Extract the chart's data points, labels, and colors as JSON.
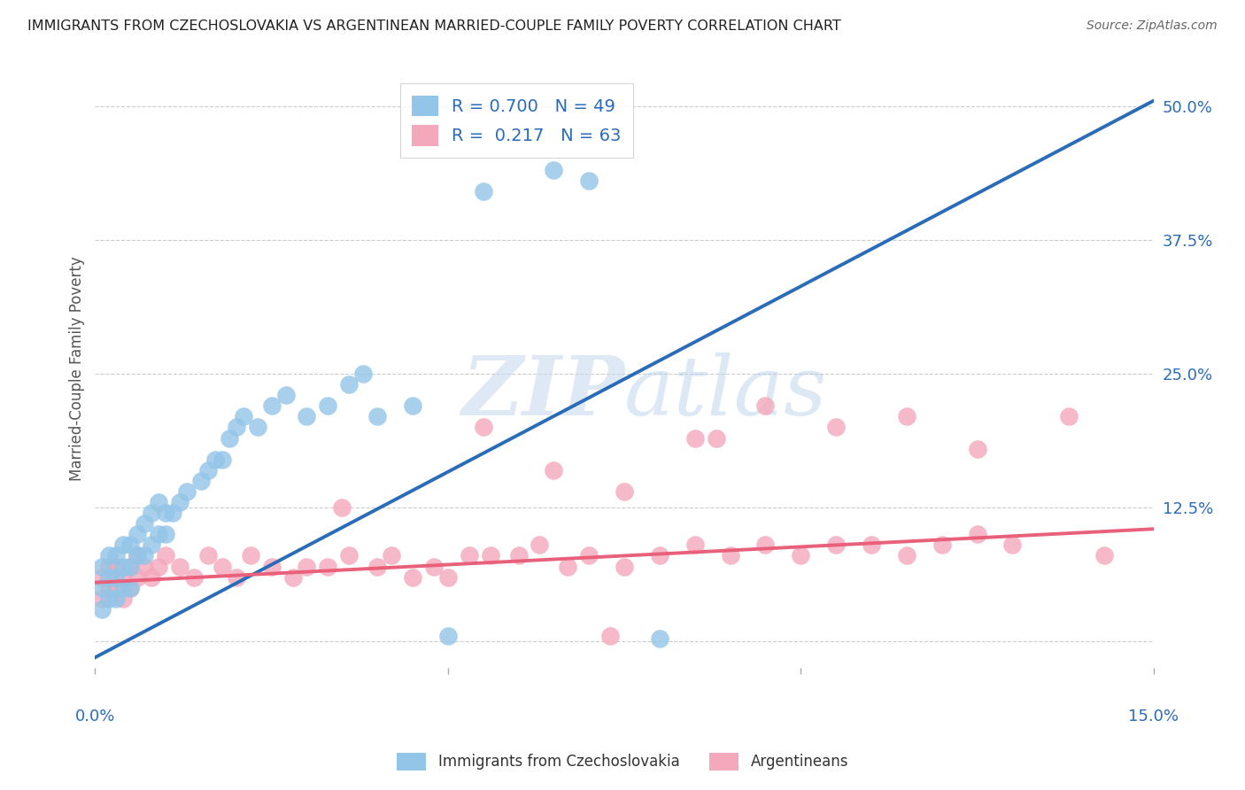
{
  "title": "IMMIGRANTS FROM CZECHOSLOVAKIA VS ARGENTINEAN MARRIED-COUPLE FAMILY POVERTY CORRELATION CHART",
  "source": "Source: ZipAtlas.com",
  "ylabel": "Married-Couple Family Poverty",
  "ytick_labels": [
    "",
    "12.5%",
    "25.0%",
    "37.5%",
    "50.0%"
  ],
  "ytick_values": [
    0.0,
    0.125,
    0.25,
    0.375,
    0.5
  ],
  "xlim": [
    0.0,
    0.15
  ],
  "ylim": [
    -0.025,
    0.535
  ],
  "blue_R": 0.7,
  "blue_N": 49,
  "pink_R": 0.217,
  "pink_N": 63,
  "blue_color": "#92C5E8",
  "pink_color": "#F4A8BC",
  "blue_line_color": "#2B6CB8",
  "pink_line_color": "#E8607A",
  "legend_label_blue": "Immigrants from Czechoslovakia",
  "legend_label_pink": "Argentineans",
  "blue_scatter_x": [
    0.001,
    0.001,
    0.001,
    0.002,
    0.002,
    0.002,
    0.003,
    0.003,
    0.003,
    0.004,
    0.004,
    0.004,
    0.005,
    0.005,
    0.005,
    0.006,
    0.006,
    0.007,
    0.007,
    0.008,
    0.008,
    0.009,
    0.009,
    0.01,
    0.01,
    0.011,
    0.012,
    0.013,
    0.015,
    0.016,
    0.017,
    0.018,
    0.019,
    0.02,
    0.021,
    0.023,
    0.025,
    0.027,
    0.03,
    0.033,
    0.036,
    0.038,
    0.04,
    0.045,
    0.05,
    0.055,
    0.065,
    0.07,
    0.08
  ],
  "blue_scatter_y": [
    0.03,
    0.05,
    0.07,
    0.04,
    0.06,
    0.08,
    0.04,
    0.06,
    0.08,
    0.05,
    0.07,
    0.09,
    0.05,
    0.07,
    0.09,
    0.08,
    0.1,
    0.08,
    0.11,
    0.09,
    0.12,
    0.1,
    0.13,
    0.1,
    0.12,
    0.12,
    0.13,
    0.14,
    0.15,
    0.16,
    0.17,
    0.17,
    0.19,
    0.2,
    0.21,
    0.2,
    0.22,
    0.23,
    0.21,
    0.22,
    0.24,
    0.25,
    0.21,
    0.22,
    0.005,
    0.42,
    0.44,
    0.43,
    0.003
  ],
  "pink_scatter_x": [
    0.001,
    0.001,
    0.002,
    0.002,
    0.003,
    0.003,
    0.004,
    0.004,
    0.005,
    0.005,
    0.006,
    0.006,
    0.007,
    0.008,
    0.009,
    0.01,
    0.012,
    0.014,
    0.016,
    0.018,
    0.02,
    0.022,
    0.025,
    0.028,
    0.03,
    0.033,
    0.036,
    0.04,
    0.042,
    0.045,
    0.048,
    0.05,
    0.053,
    0.056,
    0.06,
    0.063,
    0.067,
    0.07,
    0.075,
    0.08,
    0.085,
    0.09,
    0.095,
    0.1,
    0.105,
    0.11,
    0.115,
    0.12,
    0.125,
    0.13,
    0.035,
    0.055,
    0.065,
    0.075,
    0.085,
    0.095,
    0.105,
    0.115,
    0.125,
    0.138,
    0.073,
    0.088,
    0.143
  ],
  "pink_scatter_y": [
    0.04,
    0.06,
    0.05,
    0.07,
    0.05,
    0.07,
    0.04,
    0.06,
    0.05,
    0.07,
    0.06,
    0.08,
    0.07,
    0.06,
    0.07,
    0.08,
    0.07,
    0.06,
    0.08,
    0.07,
    0.06,
    0.08,
    0.07,
    0.06,
    0.07,
    0.07,
    0.08,
    0.07,
    0.08,
    0.06,
    0.07,
    0.06,
    0.08,
    0.08,
    0.08,
    0.09,
    0.07,
    0.08,
    0.07,
    0.08,
    0.09,
    0.08,
    0.09,
    0.08,
    0.09,
    0.09,
    0.08,
    0.09,
    0.1,
    0.09,
    0.125,
    0.2,
    0.16,
    0.14,
    0.19,
    0.22,
    0.2,
    0.21,
    0.18,
    0.21,
    0.005,
    0.19,
    0.08
  ],
  "blue_line_x": [
    0.0,
    0.15
  ],
  "blue_line_y": [
    -0.015,
    0.505
  ],
  "pink_line_x": [
    0.0,
    0.15
  ],
  "pink_line_y": [
    0.055,
    0.105
  ]
}
